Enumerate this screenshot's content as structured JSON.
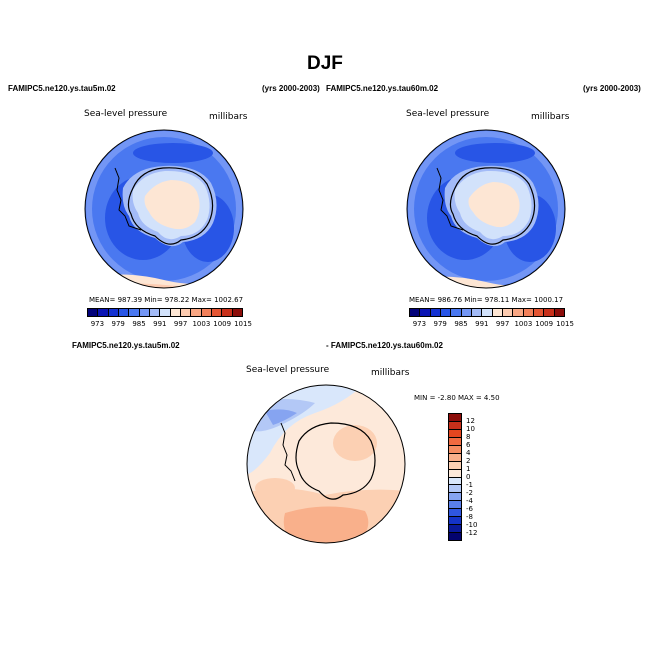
{
  "figure": {
    "title": "DJF",
    "panel_left": {
      "case": "FAMIPC5.ne120.ys.tau5m.02",
      "years": "(yrs 2000-2003)",
      "variable": "Sea-level pressure",
      "units": "millibars",
      "stats": "MEAN= 987.39   Min= 978.22   Max= 1002.67"
    },
    "panel_right": {
      "case": "FAMIPC5.ne120.ys.tau60m.02",
      "years": "(yrs 2000-2003)",
      "variable": "Sea-level pressure",
      "units": "millibars",
      "stats": "MEAN= 986.76   Min= 978.11   Max= 1000.17"
    },
    "panel_diff": {
      "case_a": "FAMIPC5.ne120.ys.tau5m.02",
      "case_b": "- FAMIPC5.ne120.ys.tau60m.02",
      "variable": "Sea-level pressure",
      "units": "millibars",
      "stats": "MIN =   -2.80  MAX =    4.50"
    },
    "abs_colorbar": {
      "tick_labels": [
        "973",
        "979",
        "985",
        "991",
        "997",
        "1003",
        "1009",
        "1015"
      ],
      "colors": [
        "#02027a",
        "#0a14b4",
        "#1432d2",
        "#2855e6",
        "#4a78f0",
        "#7396f5",
        "#a3bbf7",
        "#d2e2fb",
        "#fde6d4",
        "#fccbb0",
        "#f9a784",
        "#f2805a",
        "#e45533",
        "#c8301b",
        "#8c0d0a"
      ]
    },
    "diff_colorbar": {
      "tick_labels": [
        "12",
        "10",
        "8",
        "6",
        "4",
        "2",
        "1",
        "0",
        "-1",
        "-2",
        "-4",
        "-6",
        "-8",
        "-10",
        "-12"
      ],
      "colors": [
        "#8c0d0a",
        "#c8301b",
        "#e4461f",
        "#f06a40",
        "#f58d62",
        "#f9b08b",
        "#fcd0b3",
        "#fde9da",
        "#d9e7fb",
        "#b3c8f6",
        "#86a4f1",
        "#5a7fea",
        "#2f56e0",
        "#1433c8",
        "#0a199a",
        "#03036e"
      ]
    }
  }
}
